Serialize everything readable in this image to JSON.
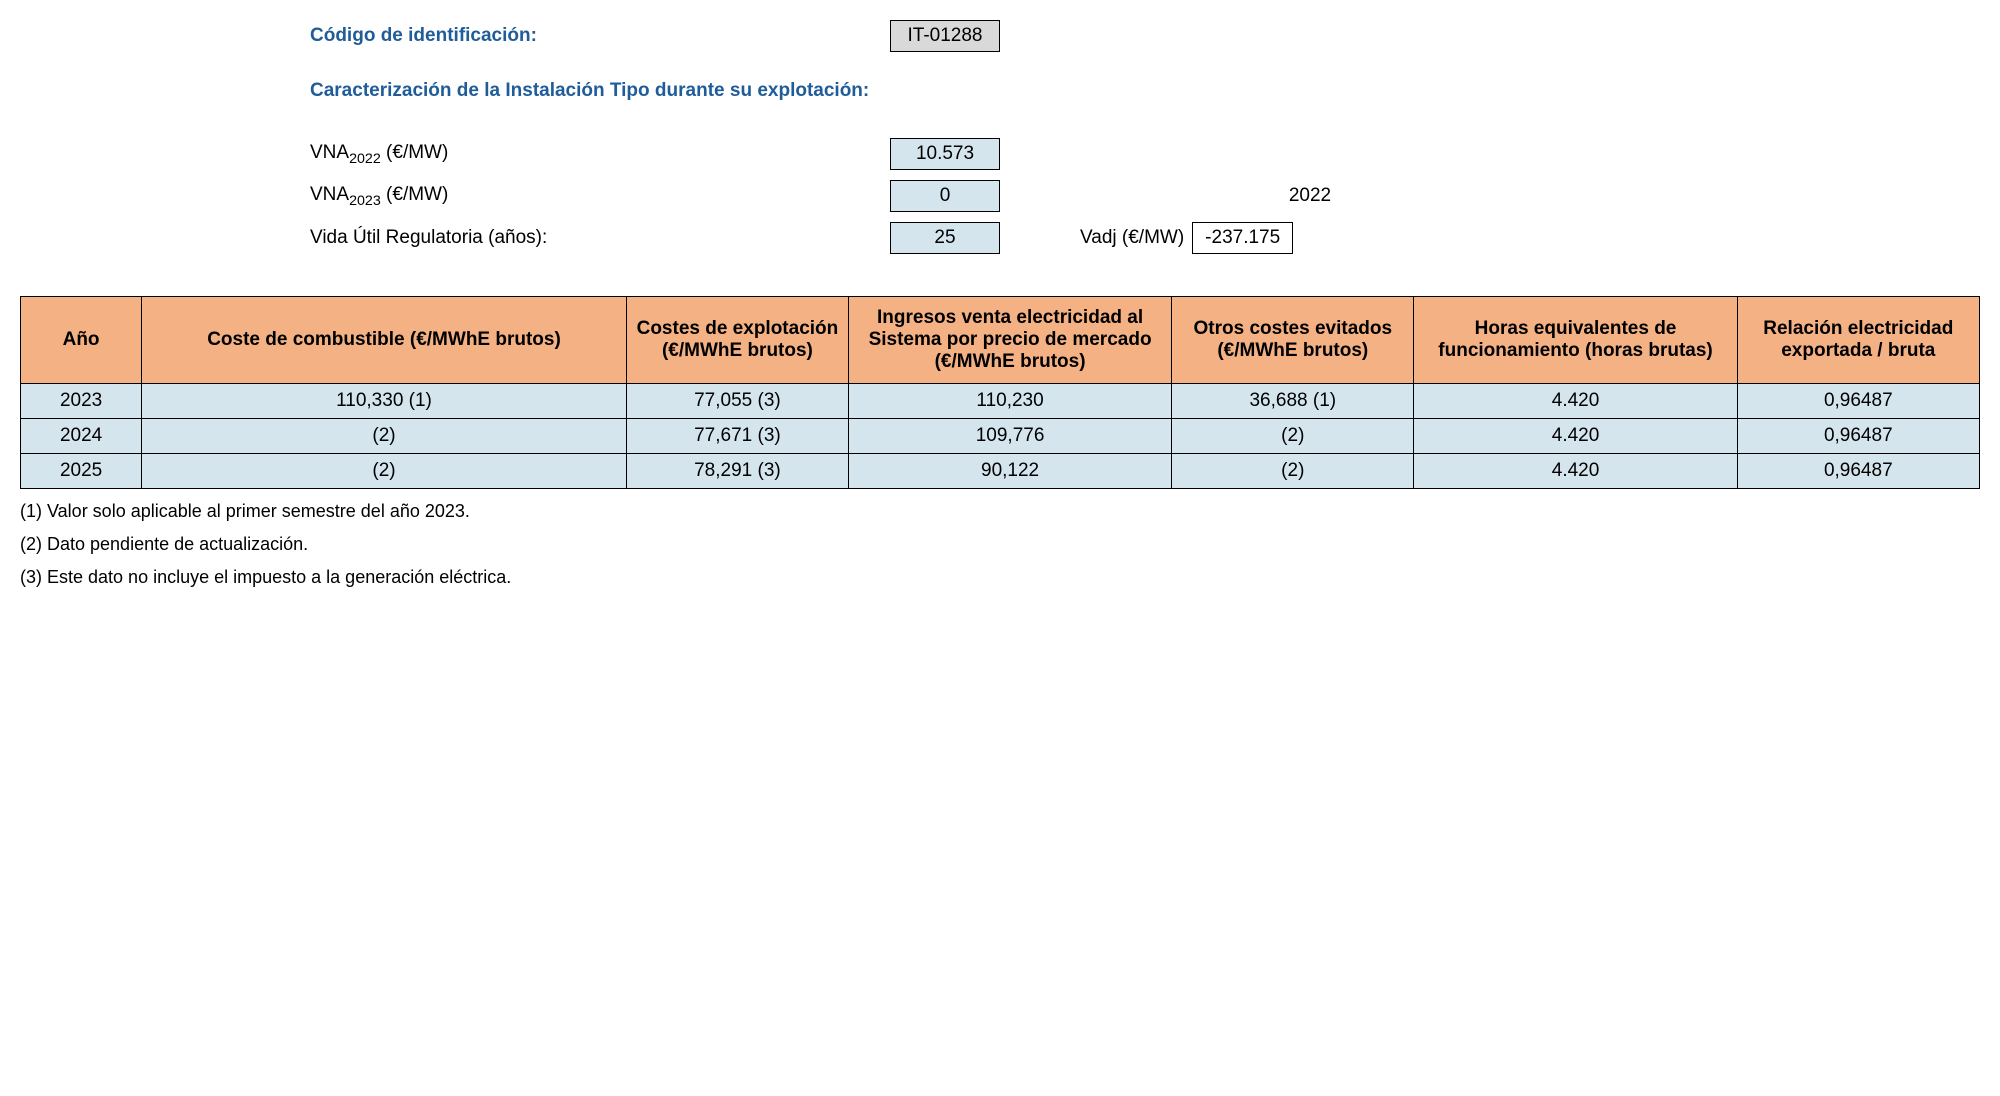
{
  "header": {
    "id_label": "Código de identificación:",
    "id_value": "IT-01288",
    "section_title": "Caracterización de la Instalación Tipo durante su explotación:"
  },
  "params": {
    "vna2022_label_prefix": "VNA",
    "vna2022_label_sub": "2022",
    "vna2022_label_unit": " (€/MW)",
    "vna2022_value": "10.573",
    "vna2023_label_prefix": "VNA",
    "vna2023_label_sub": "2023",
    "vna2023_label_unit": " (€/MW)",
    "vna2023_value": "0",
    "year_ref": "2022",
    "vida_label": "Vida Útil Regulatoria (años):",
    "vida_value": "25",
    "vadj_label": "Vadj (€/MW)",
    "vadj_value": "-237.175"
  },
  "table": {
    "headers": {
      "year": "Año",
      "fuel": "Coste de combustible (€/MWhE brutos)",
      "exploit": "Costes de explotación (€/MWhE brutos)",
      "income": "Ingresos venta electricidad al Sistema por precio de mercado (€/MWhE brutos)",
      "other": "Otros costes evitados (€/MWhE brutos)",
      "hours": "Horas equivalentes de funcionamiento (horas brutas)",
      "ratio": "Relación electricidad exportada / bruta"
    },
    "rows": [
      {
        "year": "2023",
        "fuel": "110,330 (1)",
        "exploit": "77,055 (3)",
        "income": "110,230",
        "other": "36,688 (1)",
        "hours": "4.420",
        "ratio": "0,96487"
      },
      {
        "year": "2024",
        "fuel": "(2)",
        "exploit": "77,671 (3)",
        "income": "109,776",
        "other": "(2)",
        "hours": "4.420",
        "ratio": "0,96487"
      },
      {
        "year": "2025",
        "fuel": "(2)",
        "exploit": "78,291 (3)",
        "income": "90,122",
        "other": "(2)",
        "hours": "4.420",
        "ratio": "0,96487"
      }
    ]
  },
  "footnotes": [
    "(1) Valor solo aplicable al primer semestre del año 2023.",
    "(2) Dato pendiente de actualización.",
    "(3) Este dato no incluye el impuesto a la generación eléctrica."
  ],
  "colors": {
    "header_text": "#1f5c99",
    "table_header_bg": "#f4b183",
    "table_cell_bg": "#d5e5ed",
    "id_box_bg": "#d9d9d9",
    "border": "#000000"
  }
}
